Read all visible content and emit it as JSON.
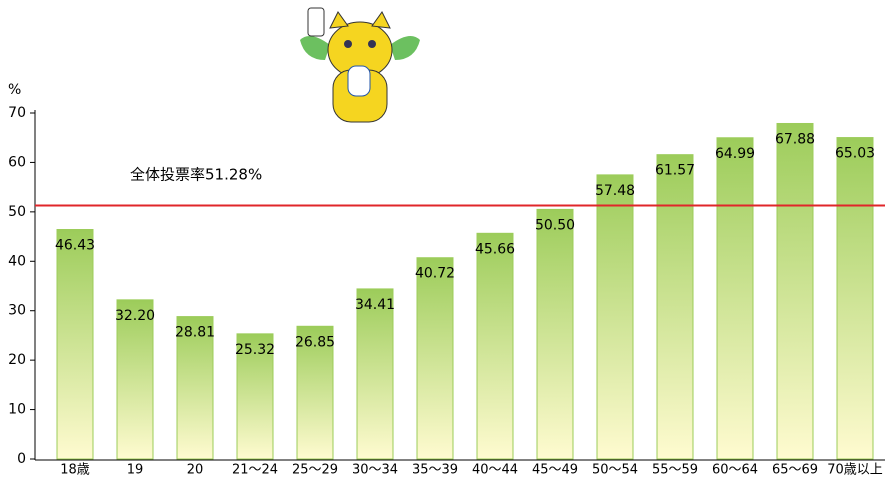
{
  "chart_data": {
    "type": "bar",
    "y_label": "%",
    "categories": [
      "18歳",
      "19",
      "20",
      "21～24",
      "25～29",
      "30～34",
      "35～39",
      "40～44",
      "45～49",
      "50～54",
      "55～59",
      "60～64",
      "65～69",
      "70歳以上"
    ],
    "values": [
      46.43,
      32.2,
      28.81,
      25.32,
      26.85,
      34.41,
      40.72,
      45.66,
      50.5,
      57.48,
      61.57,
      64.99,
      67.88,
      65.03
    ],
    "value_labels": [
      "46.43",
      "32.20",
      "28.81",
      "25.32",
      "26.85",
      "34.41",
      "40.72",
      "45.66",
      "50.50",
      "57.48",
      "61.57",
      "64.99",
      "67.88",
      "65.03"
    ],
    "color": "#9ccc5a",
    "ylim": [
      0,
      70
    ],
    "yticks": [
      0,
      10,
      20,
      30,
      40,
      50,
      60,
      70
    ],
    "reference_line": {
      "value": 51.28,
      "color": "#e0262a",
      "label": "全体投票率51.28%"
    }
  }
}
